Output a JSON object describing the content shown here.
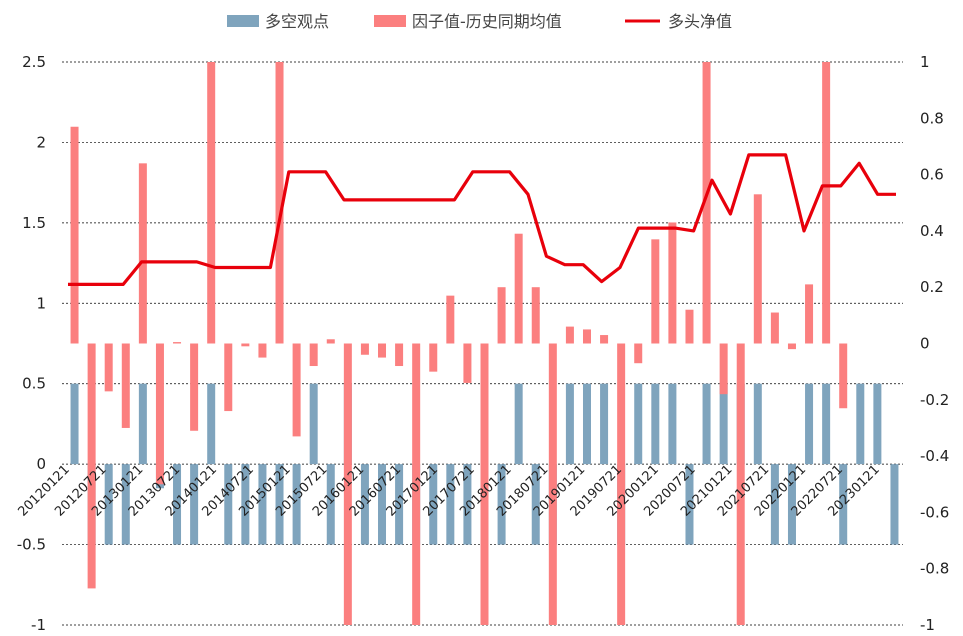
{
  "chart_data": {
    "type": "bar+line",
    "legend": {
      "position": "top",
      "entries": [
        {
          "label": "多空观点",
          "kind": "bar",
          "color": "#7FA4BD"
        },
        {
          "label": "因子值-历史同期均值",
          "kind": "bar",
          "color": "#FB7F7F"
        },
        {
          "label": "多头净值",
          "kind": "line",
          "color": "#E8000B"
        }
      ]
    },
    "left_axis": {
      "min": -1,
      "max": 2.5,
      "ticks": [
        "-1",
        "-0.5",
        "0",
        "0.5",
        "1",
        "1.5",
        "2",
        "2.5"
      ]
    },
    "right_axis": {
      "min": -1,
      "max": 1,
      "ticks": [
        "-1",
        "-0.8",
        "-0.6",
        "-0.4",
        "-0.2",
        "0",
        "0.2",
        "0.4",
        "0.6",
        "0.8",
        "1"
      ]
    },
    "grid": true,
    "x_tick_labels": [
      "20120121",
      "20120721",
      "20130121",
      "20130721",
      "20140121",
      "20140721",
      "20150121",
      "20150721",
      "20160121",
      "20160721",
      "20170121",
      "20170721",
      "20180121",
      "20180721",
      "20190121",
      "20190721",
      "20200121",
      "20200721",
      "20210121",
      "20210721",
      "20220121",
      "20220721",
      "20230121"
    ],
    "series": [
      {
        "name": "多空观点",
        "type": "bar",
        "axis": "left",
        "values": [
          0.5,
          -0.5,
          -0.5,
          -0.5,
          0.5,
          -0.15,
          -0.5,
          -0.5,
          0.5,
          -0.5,
          -0.5,
          -0.5,
          -0.5,
          -0.5,
          0.5,
          -0.5,
          0.5,
          -0.5,
          -0.5,
          -0.5,
          -0.5,
          -0.5,
          -0.5,
          -0.5,
          -0.5,
          -0.5,
          0.5,
          -0.5,
          -0.5,
          0.5,
          0.5,
          0.5,
          -0.5,
          0.5,
          0.5,
          0.5,
          -0.5,
          0.5,
          0.5,
          0.5,
          0.5,
          -0.5,
          -0.5,
          0.5,
          0.5,
          -0.5,
          0.5,
          0.5,
          -0.5
        ]
      },
      {
        "name": "因子值-历史同期均值",
        "type": "bar",
        "axis": "right",
        "values": [
          0.77,
          -0.87,
          -0.17,
          -0.3,
          0.64,
          -0.5,
          0.005,
          -0.31,
          1,
          -0.24,
          -0.01,
          -0.05,
          1,
          -0.33,
          -0.08,
          0.015,
          -1,
          -0.04,
          -0.05,
          -0.08,
          -1,
          -0.1,
          0.17,
          -0.14,
          -1,
          0.2,
          0.39,
          0.2,
          -1,
          0.06,
          0.05,
          0.03,
          -1,
          -0.07,
          0.37,
          0.43,
          0.12,
          1,
          -0.18,
          -1,
          0.53,
          0.11,
          -0.02,
          0.21,
          1,
          -0.23,
          0,
          0,
          0
        ]
      },
      {
        "name": "多头净值",
        "type": "line",
        "axis": "right",
        "values": [
          0.21,
          0.21,
          0.21,
          0.21,
          0.29,
          0.29,
          0.29,
          0.29,
          0.27,
          0.27,
          0.27,
          0.27,
          0.61,
          0.61,
          0.61,
          0.51,
          0.51,
          0.51,
          0.51,
          0.51,
          0.51,
          0.51,
          0.61,
          0.61,
          0.61,
          0.53,
          0.31,
          0.28,
          0.28,
          0.22,
          0.27,
          0.41,
          0.41,
          0.41,
          0.4,
          0.58,
          0.46,
          0.67,
          0.67,
          0.67,
          0.4,
          0.56,
          0.56,
          0.64,
          0.53,
          0.53
        ]
      }
    ]
  }
}
